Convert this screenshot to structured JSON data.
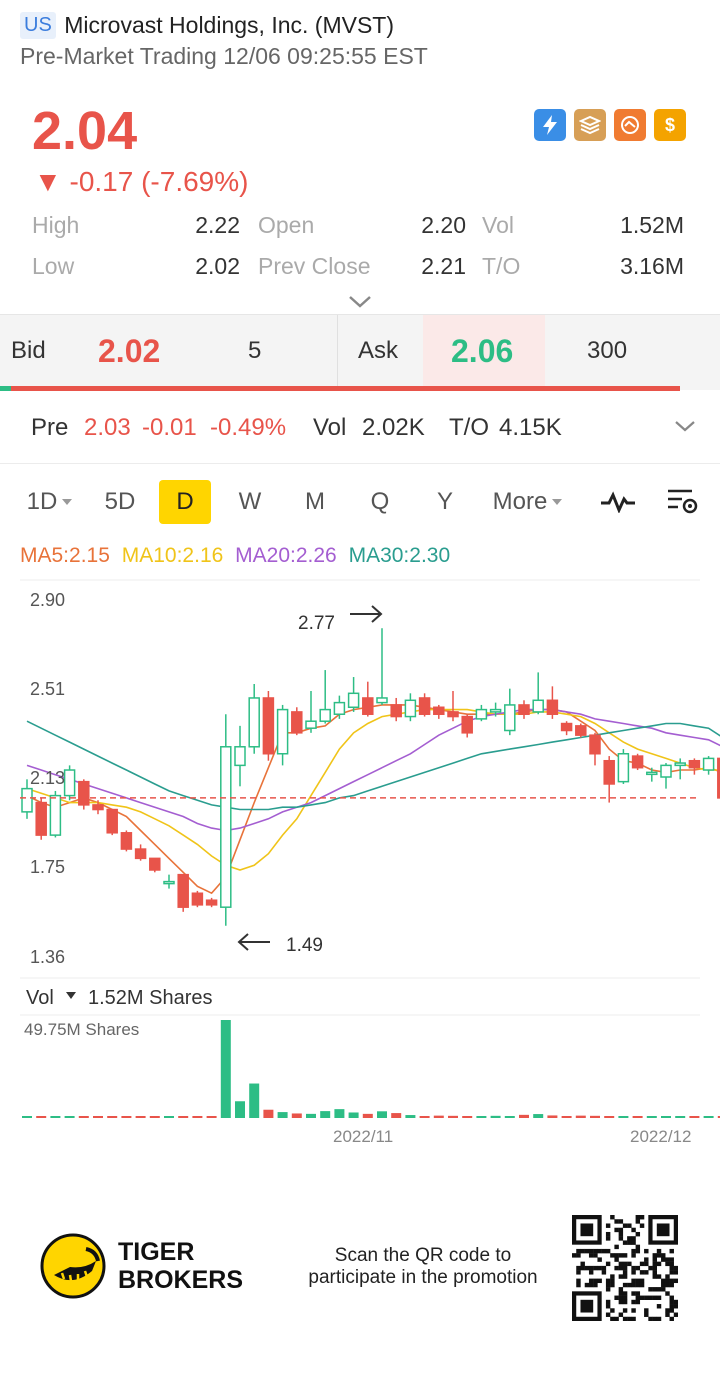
{
  "header": {
    "market": "US",
    "title": "Microvast Holdings, Inc. (MVST)",
    "session": "Pre-Market Trading 12/06 09:25:55 EST"
  },
  "quote": {
    "price": "2.04",
    "change": "▼ -0.17 (-7.69%)",
    "color_down": "#e8544a",
    "color_up": "#2dbd85"
  },
  "badges": [
    {
      "icon": "lightning-icon",
      "glyph": "ϟ",
      "color": "#3a8ee6"
    },
    {
      "icon": "stack-a-icon",
      "glyph": "≡",
      "color": "#d79f56"
    },
    {
      "icon": "handshake-icon",
      "glyph": "∞",
      "color": "#f07b31"
    },
    {
      "icon": "dollar-icon",
      "glyph": "$",
      "color": "#f4a300"
    }
  ],
  "stats": {
    "high_label": "High",
    "high": "2.22",
    "open_label": "Open",
    "open": "2.20",
    "vol_label": "Vol",
    "vol": "1.52M",
    "low_label": "Low",
    "low": "2.02",
    "prev_label": "Prev Close",
    "prev": "2.21",
    "to_label": "T/O",
    "to": "3.16M"
  },
  "bidask": {
    "bid_label": "Bid",
    "bid": "2.02",
    "bid_qty": "5",
    "ask_label": "Ask",
    "ask": "2.06",
    "ask_qty": "300",
    "buy_fraction": 0.016
  },
  "pre": {
    "label": "Pre",
    "price": "2.03",
    "change": "-0.01",
    "pct": "-0.49%",
    "vol_label": "Vol",
    "vol": "2.02K",
    "to_label": "T/O",
    "to": "4.15K"
  },
  "periods": [
    "1D",
    "5D",
    "D",
    "W",
    "M",
    "Q",
    "Y",
    "More"
  ],
  "active_period": "D",
  "ma": {
    "ma5": "MA5:2.15",
    "ma10": "MA10:2.16",
    "ma20": "MA20:2.26",
    "ma30": "MA30:2.30",
    "colors": {
      "ma5": "#e8733a",
      "ma10": "#f0c419",
      "ma20": "#a45ed1",
      "ma30": "#2a9d8f"
    }
  },
  "volume": {
    "label": "Vol",
    "value": "1.52M Shares",
    "max_label": "49.75M Shares"
  },
  "footer": {
    "brand_line1": "TIGER",
    "brand_line2": "BROKERS",
    "promo": "Scan the QR code to participate in the promotion"
  },
  "chart_data": {
    "type": "candlestick",
    "ylim": [
      1.36,
      2.9
    ],
    "y_ticks": [
      "2.90",
      "2.51",
      "2.13",
      "1.75",
      "1.36"
    ],
    "x_ticks": [
      "2022/11",
      "2022/12"
    ],
    "ref_price": 2.04,
    "high_marker": "2.77",
    "low_marker": "1.49",
    "candles": [
      {
        "o": 1.98,
        "c": 2.08,
        "h": 2.12,
        "l": 1.95
      },
      {
        "o": 2.02,
        "c": 1.88,
        "h": 2.04,
        "l": 1.86
      },
      {
        "o": 1.88,
        "c": 2.05,
        "h": 2.07,
        "l": 1.87
      },
      {
        "o": 2.05,
        "c": 2.16,
        "h": 2.18,
        "l": 2.03
      },
      {
        "o": 2.11,
        "c": 2.01,
        "h": 2.12,
        "l": 1.99
      },
      {
        "o": 2.01,
        "c": 1.99,
        "h": 2.03,
        "l": 1.97
      },
      {
        "o": 1.99,
        "c": 1.89,
        "h": 1.99,
        "l": 1.88
      },
      {
        "o": 1.89,
        "c": 1.82,
        "h": 1.9,
        "l": 1.81
      },
      {
        "o": 1.82,
        "c": 1.78,
        "h": 1.84,
        "l": 1.77
      },
      {
        "o": 1.78,
        "c": 1.73,
        "h": 1.78,
        "l": 1.72
      },
      {
        "o": 1.68,
        "c": 1.68,
        "h": 1.71,
        "l": 1.65
      },
      {
        "o": 1.71,
        "c": 1.57,
        "h": 1.71,
        "l": 1.55
      },
      {
        "o": 1.63,
        "c": 1.58,
        "h": 1.64,
        "l": 1.57
      },
      {
        "o": 1.6,
        "c": 1.58,
        "h": 1.61,
        "l": 1.57
      },
      {
        "o": 1.57,
        "c": 2.26,
        "h": 2.4,
        "l": 1.49
      },
      {
        "o": 2.18,
        "c": 2.26,
        "h": 2.35,
        "l": 2.09
      },
      {
        "o": 2.26,
        "c": 2.47,
        "h": 2.53,
        "l": 2.23
      },
      {
        "o": 2.47,
        "c": 2.23,
        "h": 2.5,
        "l": 2.2
      },
      {
        "o": 2.23,
        "c": 2.42,
        "h": 2.44,
        "l": 2.18
      },
      {
        "o": 2.41,
        "c": 2.32,
        "h": 2.43,
        "l": 2.31
      },
      {
        "o": 2.34,
        "c": 2.37,
        "h": 2.5,
        "l": 2.32
      },
      {
        "o": 2.37,
        "c": 2.42,
        "h": 2.59,
        "l": 2.36
      },
      {
        "o": 2.4,
        "c": 2.45,
        "h": 2.48,
        "l": 2.38
      },
      {
        "o": 2.43,
        "c": 2.49,
        "h": 2.56,
        "l": 2.41
      },
      {
        "o": 2.47,
        "c": 2.4,
        "h": 2.54,
        "l": 2.39
      },
      {
        "o": 2.45,
        "c": 2.47,
        "h": 2.77,
        "l": 2.44
      },
      {
        "o": 2.44,
        "c": 2.39,
        "h": 2.47,
        "l": 2.37
      },
      {
        "o": 2.39,
        "c": 2.46,
        "h": 2.49,
        "l": 2.37
      },
      {
        "o": 2.47,
        "c": 2.4,
        "h": 2.49,
        "l": 2.39
      },
      {
        "o": 2.43,
        "c": 2.4,
        "h": 2.44,
        "l": 2.38
      },
      {
        "o": 2.41,
        "c": 2.39,
        "h": 2.5,
        "l": 2.37
      },
      {
        "o": 2.39,
        "c": 2.32,
        "h": 2.4,
        "l": 2.3
      },
      {
        "o": 2.38,
        "c": 2.42,
        "h": 2.44,
        "l": 2.37
      },
      {
        "o": 2.41,
        "c": 2.42,
        "h": 2.45,
        "l": 2.39
      },
      {
        "o": 2.33,
        "c": 2.44,
        "h": 2.51,
        "l": 2.31
      },
      {
        "o": 2.44,
        "c": 2.4,
        "h": 2.46,
        "l": 2.38
      },
      {
        "o": 2.41,
        "c": 2.46,
        "h": 2.58,
        "l": 2.4
      },
      {
        "o": 2.46,
        "c": 2.4,
        "h": 2.52,
        "l": 2.38
      },
      {
        "o": 2.36,
        "c": 2.33,
        "h": 2.37,
        "l": 2.31
      },
      {
        "o": 2.35,
        "c": 2.31,
        "h": 2.36,
        "l": 2.3
      },
      {
        "o": 2.31,
        "c": 2.23,
        "h": 2.32,
        "l": 2.18
      },
      {
        "o": 2.2,
        "c": 2.1,
        "h": 2.22,
        "l": 2.02
      },
      {
        "o": 2.11,
        "c": 2.23,
        "h": 2.25,
        "l": 2.1
      },
      {
        "o": 2.22,
        "c": 2.17,
        "h": 2.23,
        "l": 2.16
      },
      {
        "o": 2.15,
        "c": 2.15,
        "h": 2.17,
        "l": 2.11
      },
      {
        "o": 2.13,
        "c": 2.18,
        "h": 2.19,
        "l": 2.08
      },
      {
        "o": 2.18,
        "c": 2.19,
        "h": 2.21,
        "l": 2.12
      },
      {
        "o": 2.2,
        "c": 2.17,
        "h": 2.21,
        "l": 2.14
      },
      {
        "o": 2.16,
        "c": 2.21,
        "h": 2.22,
        "l": 2.14
      },
      {
        "o": 2.21,
        "c": 2.04,
        "h": 2.22,
        "l": 2.02
      }
    ],
    "volumes": [
      0.6,
      0.5,
      0.6,
      0.6,
      0.7,
      0.5,
      0.4,
      0.5,
      0.6,
      0.5,
      0.7,
      0.8,
      0.9,
      0.8,
      49.75,
      8.5,
      17.5,
      4.2,
      3.0,
      2.3,
      2.1,
      3.5,
      4.5,
      2.8,
      2.1,
      3.4,
      2.5,
      1.5,
      1.0,
      1.2,
      1.1,
      0.9,
      1.0,
      1.1,
      1.0,
      1.6,
      2.0,
      1.3,
      1.0,
      1.2,
      1.1,
      1.0,
      0.8,
      0.5,
      0.4,
      0.5,
      0.7,
      0.6,
      0.6,
      0.5
    ],
    "ma_series": {
      "ma5": [
        2.05,
        2.02,
        2.0,
        2.02,
        2.04,
        2.02,
        1.99,
        1.96,
        1.9,
        1.84,
        1.78,
        1.72,
        1.66,
        1.63,
        1.7,
        1.86,
        2.02,
        2.17,
        2.32,
        2.32,
        2.34,
        2.35,
        2.4,
        2.42,
        2.43,
        2.44,
        2.44,
        2.44,
        2.43,
        2.42,
        2.41,
        2.4,
        2.4,
        2.4,
        2.4,
        2.41,
        2.42,
        2.42,
        2.41,
        2.37,
        2.33,
        2.25,
        2.2,
        2.19,
        2.16,
        2.15,
        2.16,
        2.16,
        2.17,
        2.15
      ],
      "ma10": [
        2.08,
        2.06,
        2.04,
        2.02,
        2.02,
        2.02,
        2.01,
        2.0,
        1.98,
        1.95,
        1.92,
        1.88,
        1.84,
        1.79,
        1.75,
        1.73,
        1.75,
        1.8,
        1.88,
        1.95,
        2.05,
        2.15,
        2.25,
        2.32,
        2.36,
        2.39,
        2.4,
        2.41,
        2.42,
        2.42,
        2.42,
        2.42,
        2.41,
        2.4,
        2.4,
        2.4,
        2.41,
        2.41,
        2.4,
        2.39,
        2.36,
        2.32,
        2.28,
        2.25,
        2.23,
        2.21,
        2.19,
        2.17,
        2.16,
        2.16
      ],
      "ma20": [
        2.18,
        2.16,
        2.14,
        2.12,
        2.1,
        2.08,
        2.06,
        2.04,
        2.02,
        2.0,
        1.98,
        1.96,
        1.93,
        1.91,
        1.9,
        1.91,
        1.93,
        1.95,
        1.98,
        2.0,
        2.02,
        2.05,
        2.08,
        2.11,
        2.14,
        2.17,
        2.2,
        2.23,
        2.27,
        2.31,
        2.34,
        2.37,
        2.39,
        2.4,
        2.41,
        2.42,
        2.42,
        2.42,
        2.41,
        2.4,
        2.38,
        2.37,
        2.36,
        2.35,
        2.34,
        2.32,
        2.31,
        2.3,
        2.29,
        2.26
      ],
      "ma30": [
        2.37,
        2.34,
        2.31,
        2.28,
        2.25,
        2.22,
        2.19,
        2.16,
        2.13,
        2.1,
        2.07,
        2.05,
        2.03,
        2.01,
        2.0,
        1.99,
        1.99,
        1.99,
        2.0,
        2.0,
        2.01,
        2.02,
        2.04,
        2.05,
        2.07,
        2.09,
        2.11,
        2.13,
        2.15,
        2.17,
        2.19,
        2.21,
        2.23,
        2.24,
        2.25,
        2.26,
        2.27,
        2.28,
        2.29,
        2.3,
        2.31,
        2.32,
        2.33,
        2.34,
        2.35,
        2.36,
        2.36,
        2.35,
        2.34,
        2.3
      ]
    }
  }
}
